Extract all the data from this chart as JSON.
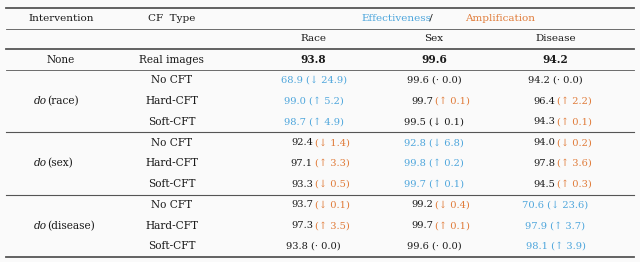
{
  "blue_color": "#4EA6DC",
  "orange_color": "#E07B39",
  "black_color": "#1a1a1a",
  "bg_color": "#FAFAFA",
  "border_color": "#555555",
  "rows": [
    {
      "intervention": "do(race)",
      "cf_type": "No CFT",
      "race": {
        "main": "68.9",
        "ann": "↓ 24.9",
        "main_color": "blue",
        "ann_color": "blue"
      },
      "sex": {
        "main": "99.6",
        "ann": "· 0.0",
        "main_color": "black",
        "ann_color": "black"
      },
      "disease": {
        "main": "94.2",
        "ann": "· 0.0",
        "main_color": "black",
        "ann_color": "black"
      }
    },
    {
      "intervention": "do(race)",
      "cf_type": "Hard-CFT",
      "race": {
        "main": "99.0",
        "ann": "↑ 5.2",
        "main_color": "blue",
        "ann_color": "blue"
      },
      "sex": {
        "main": "99.7",
        "ann": "↑ 0.1",
        "main_color": "black",
        "ann_color": "orange"
      },
      "disease": {
        "main": "96.4",
        "ann": "↑ 2.2",
        "main_color": "black",
        "ann_color": "orange"
      }
    },
    {
      "intervention": "do(race)",
      "cf_type": "Soft-CFT",
      "race": {
        "main": "98.7",
        "ann": "↑ 4.9",
        "main_color": "blue",
        "ann_color": "blue"
      },
      "sex": {
        "main": "99.5",
        "ann": "↓ 0.1",
        "main_color": "black",
        "ann_color": "black"
      },
      "disease": {
        "main": "94.3",
        "ann": "↑ 0.1",
        "main_color": "black",
        "ann_color": "orange"
      }
    },
    {
      "intervention": "do(sex)",
      "cf_type": "No CFT",
      "race": {
        "main": "92.4",
        "ann": "↓ 1.4",
        "main_color": "black",
        "ann_color": "orange"
      },
      "sex": {
        "main": "92.8",
        "ann": "↓ 6.8",
        "main_color": "blue",
        "ann_color": "blue"
      },
      "disease": {
        "main": "94.0",
        "ann": "↓ 0.2",
        "main_color": "black",
        "ann_color": "orange"
      }
    },
    {
      "intervention": "do(sex)",
      "cf_type": "Hard-CFT",
      "race": {
        "main": "97.1",
        "ann": "↑ 3.3",
        "main_color": "black",
        "ann_color": "orange"
      },
      "sex": {
        "main": "99.8",
        "ann": "↑ 0.2",
        "main_color": "blue",
        "ann_color": "blue"
      },
      "disease": {
        "main": "97.8",
        "ann": "↑ 3.6",
        "main_color": "black",
        "ann_color": "orange"
      }
    },
    {
      "intervention": "do(sex)",
      "cf_type": "Soft-CFT",
      "race": {
        "main": "93.3",
        "ann": "↓ 0.5",
        "main_color": "black",
        "ann_color": "orange"
      },
      "sex": {
        "main": "99.7",
        "ann": "↑ 0.1",
        "main_color": "blue",
        "ann_color": "blue"
      },
      "disease": {
        "main": "94.5",
        "ann": "↑ 0.3",
        "main_color": "black",
        "ann_color": "orange"
      }
    },
    {
      "intervention": "do(disease)",
      "cf_type": "No CFT",
      "race": {
        "main": "93.7",
        "ann": "↓ 0.1",
        "main_color": "black",
        "ann_color": "orange"
      },
      "sex": {
        "main": "99.2",
        "ann": "↓ 0.4",
        "main_color": "black",
        "ann_color": "orange"
      },
      "disease": {
        "main": "70.6",
        "ann": "↓ 23.6",
        "main_color": "blue",
        "ann_color": "blue"
      }
    },
    {
      "intervention": "do(disease)",
      "cf_type": "Hard-CFT",
      "race": {
        "main": "97.3",
        "ann": "↑ 3.5",
        "main_color": "black",
        "ann_color": "orange"
      },
      "sex": {
        "main": "99.7",
        "ann": "↑ 0.1",
        "main_color": "black",
        "ann_color": "orange"
      },
      "disease": {
        "main": "97.9",
        "ann": "↑ 3.7",
        "main_color": "blue",
        "ann_color": "blue"
      }
    },
    {
      "intervention": "do(disease)",
      "cf_type": "Soft-CFT",
      "race": {
        "main": "93.8",
        "ann": "· 0.0",
        "main_color": "black",
        "ann_color": "black"
      },
      "sex": {
        "main": "99.6",
        "ann": "· 0.0",
        "main_color": "black",
        "ann_color": "black"
      },
      "disease": {
        "main": "98.1",
        "ann": "↑ 3.9",
        "main_color": "blue",
        "ann_color": "blue"
      }
    }
  ]
}
